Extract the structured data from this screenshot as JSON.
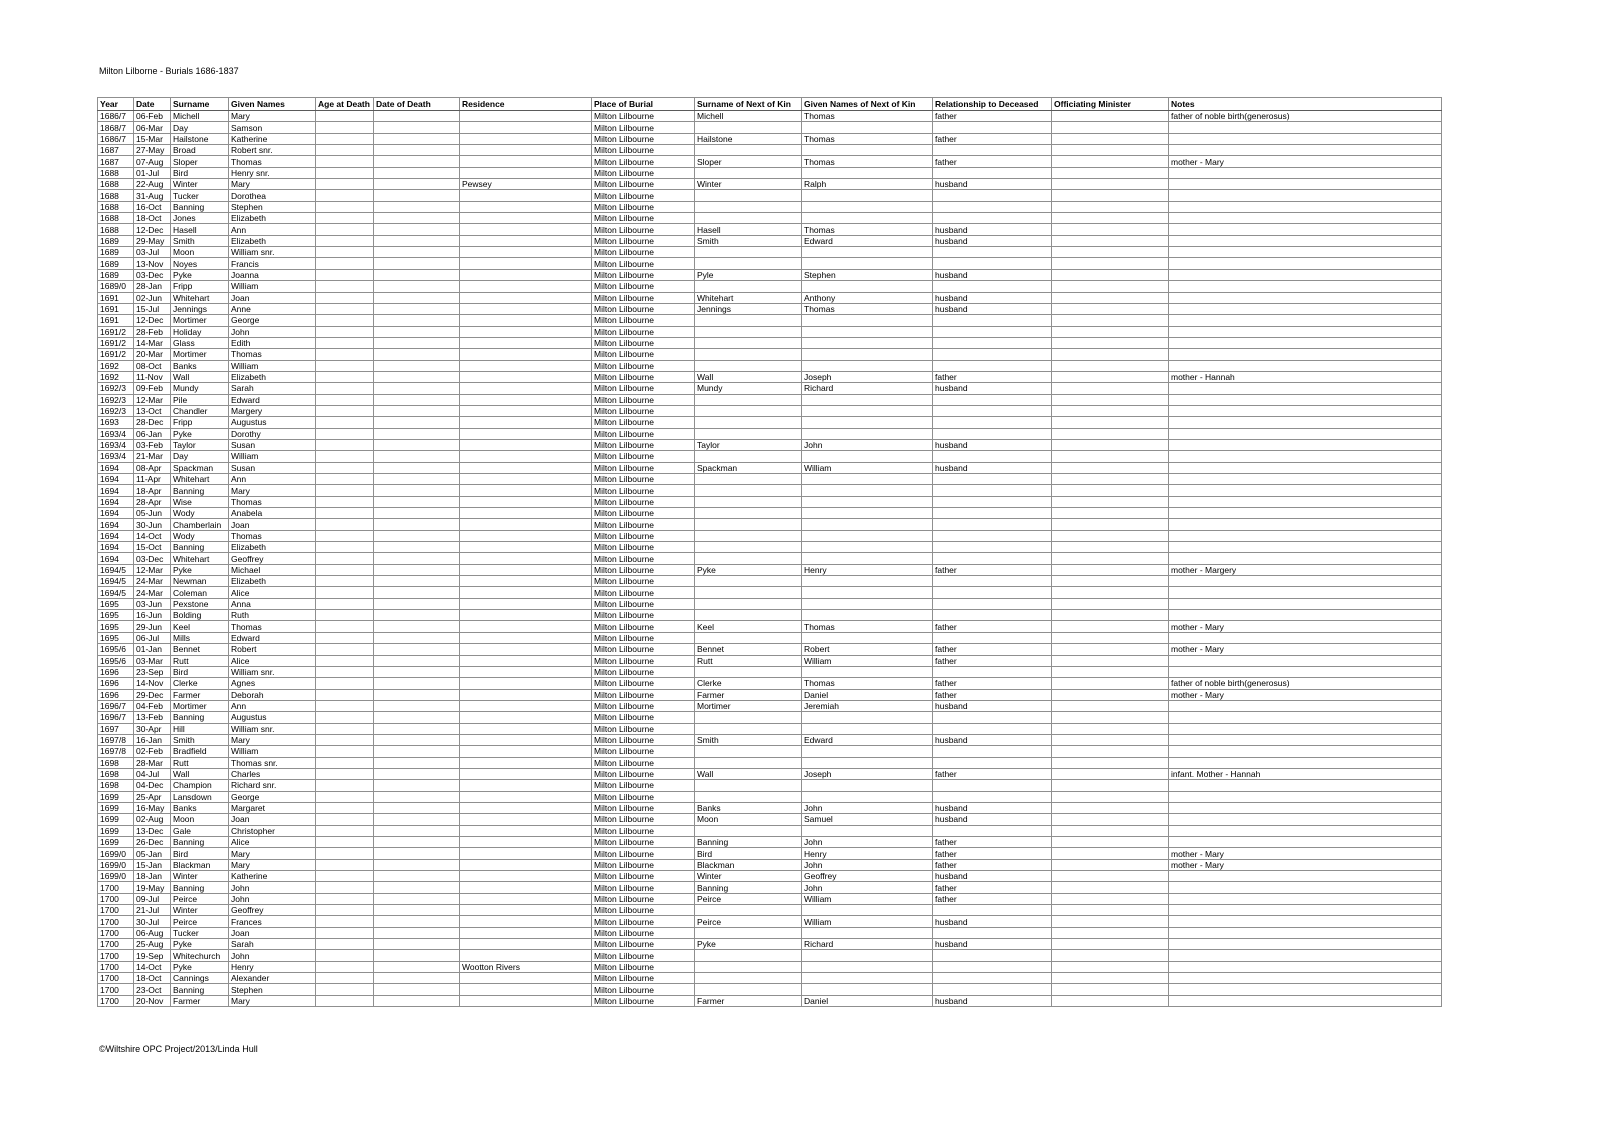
{
  "page": {
    "title": "Milton Lilborne - Burials 1686-1837",
    "footer": "©Wiltshire OPC Project/2013/Linda Hull"
  },
  "table": {
    "columns": [
      "Year",
      "Date",
      "Surname",
      "Given Names",
      "Age at Death",
      "Date of Death",
      "Residence",
      "Place of Burial",
      "Surname of Next of Kin",
      "Given Names of Next of Kin",
      "Relationship to Deceased",
      "Officiating Minister",
      "Notes"
    ],
    "rows": [
      [
        "1686/7",
        "06-Feb",
        "Michell",
        "Mary",
        "",
        "",
        "",
        "Milton Lilbourne",
        "Michell",
        "Thomas",
        "father",
        "",
        "father of noble birth(generosus)"
      ],
      [
        "1868/7",
        "06-Mar",
        "Day",
        "Samson",
        "",
        "",
        "",
        "Milton Lilbourne",
        "",
        "",
        "",
        "",
        ""
      ],
      [
        "1686/7",
        "15-Mar",
        "Hailstone",
        "Katherine",
        "",
        "",
        "",
        "Milton Lilbourne",
        "Hailstone",
        "Thomas",
        "father",
        "",
        ""
      ],
      [
        "1687",
        "27-May",
        "Broad",
        "Robert snr.",
        "",
        "",
        "",
        "Milton Lilbourne",
        "",
        "",
        "",
        "",
        ""
      ],
      [
        "1687",
        "07-Aug",
        "Sloper",
        "Thomas",
        "",
        "",
        "",
        "Milton Lilbourne",
        "Sloper",
        "Thomas",
        "father",
        "",
        "mother - Mary"
      ],
      [
        "1688",
        "01-Jul",
        "Bird",
        "Henry snr.",
        "",
        "",
        "",
        "Milton Lilbourne",
        "",
        "",
        "",
        "",
        ""
      ],
      [
        "1688",
        "22-Aug",
        "Winter",
        "Mary",
        "",
        "",
        "Pewsey",
        "Milton Lilbourne",
        "Winter",
        "Ralph",
        "husband",
        "",
        ""
      ],
      [
        "1688",
        "31-Aug",
        "Tucker",
        "Dorothea",
        "",
        "",
        "",
        "Milton Lilbourne",
        "",
        "",
        "",
        "",
        ""
      ],
      [
        "1688",
        "16-Oct",
        "Banning",
        "Stephen",
        "",
        "",
        "",
        "Milton Lilbourne",
        "",
        "",
        "",
        "",
        ""
      ],
      [
        "1688",
        "18-Oct",
        "Jones",
        "Elizabeth",
        "",
        "",
        "",
        "Milton Lilbourne",
        "",
        "",
        "",
        "",
        ""
      ],
      [
        "1688",
        "12-Dec",
        "Hasell",
        "Ann",
        "",
        "",
        "",
        "Milton Lilbourne",
        "Hasell",
        "Thomas",
        "husband",
        "",
        ""
      ],
      [
        "1689",
        "29-May",
        "Smith",
        "Elizabeth",
        "",
        "",
        "",
        "Milton Lilbourne",
        "Smith",
        "Edward",
        "husband",
        "",
        ""
      ],
      [
        "1689",
        "03-Jul",
        "Moon",
        "William snr.",
        "",
        "",
        "",
        "Milton Lilbourne",
        "",
        "",
        "",
        "",
        ""
      ],
      [
        "1689",
        "13-Nov",
        "Noyes",
        "Francis",
        "",
        "",
        "",
        "Milton Lilbourne",
        "",
        "",
        "",
        "",
        ""
      ],
      [
        "1689",
        "03-Dec",
        "Pyke",
        "Joanna",
        "",
        "",
        "",
        "Milton Lilbourne",
        "Pyle",
        "Stephen",
        "husband",
        "",
        ""
      ],
      [
        "1689/0",
        "28-Jan",
        "Fripp",
        "William",
        "",
        "",
        "",
        "Milton Lilbourne",
        "",
        "",
        "",
        "",
        ""
      ],
      [
        "1691",
        "02-Jun",
        "Whitehart",
        "Joan",
        "",
        "",
        "",
        "Milton Lilbourne",
        "Whitehart",
        "Anthony",
        "husband",
        "",
        ""
      ],
      [
        "1691",
        "15-Jul",
        "Jennings",
        "Anne",
        "",
        "",
        "",
        "Milton Lilbourne",
        "Jennings",
        "Thomas",
        "husband",
        "",
        ""
      ],
      [
        "1691",
        "12-Dec",
        "Mortimer",
        "George",
        "",
        "",
        "",
        "Milton Lilbourne",
        "",
        "",
        "",
        "",
        ""
      ],
      [
        "1691/2",
        "28-Feb",
        "Holiday",
        "John",
        "",
        "",
        "",
        "Milton Lilbourne",
        "",
        "",
        "",
        "",
        ""
      ],
      [
        "1691/2",
        "14-Mar",
        "Glass",
        "Edith",
        "",
        "",
        "",
        "Milton Lilbourne",
        "",
        "",
        "",
        "",
        ""
      ],
      [
        "1691/2",
        "20-Mar",
        "Mortimer",
        "Thomas",
        "",
        "",
        "",
        "Milton Lilbourne",
        "",
        "",
        "",
        "",
        ""
      ],
      [
        "1692",
        "08-Oct",
        "Banks",
        "William",
        "",
        "",
        "",
        "Milton Lilbourne",
        "",
        "",
        "",
        "",
        ""
      ],
      [
        "1692",
        "11-Nov",
        "Wall",
        "Elizabeth",
        "",
        "",
        "",
        "Milton Lilbourne",
        "Wall",
        "Joseph",
        "father",
        "",
        "mother - Hannah"
      ],
      [
        "1692/3",
        "09-Feb",
        "Mundy",
        "Sarah",
        "",
        "",
        "",
        "Milton Lilbourne",
        "Mundy",
        "Richard",
        "husband",
        "",
        ""
      ],
      [
        "1692/3",
        "12-Mar",
        "Pile",
        "Edward",
        "",
        "",
        "",
        "Milton Lilbourne",
        "",
        "",
        "",
        "",
        ""
      ],
      [
        "1692/3",
        "13-Oct",
        "Chandler",
        "Margery",
        "",
        "",
        "",
        "Milton Lilbourne",
        "",
        "",
        "",
        "",
        ""
      ],
      [
        "1693",
        "28-Dec",
        "Fripp",
        "Augustus",
        "",
        "",
        "",
        "Milton Lilbourne",
        "",
        "",
        "",
        "",
        ""
      ],
      [
        "1693/4",
        "06-Jan",
        "Pyke",
        "Dorothy",
        "",
        "",
        "",
        "Milton Lilbourne",
        "",
        "",
        "",
        "",
        ""
      ],
      [
        "1693/4",
        "03-Feb",
        "Taylor",
        "Susan",
        "",
        "",
        "",
        "Milton Lilbourne",
        "Taylor",
        "John",
        "husband",
        "",
        ""
      ],
      [
        "1693/4",
        "21-Mar",
        "Day",
        "William",
        "",
        "",
        "",
        "Milton Lilbourne",
        "",
        "",
        "",
        "",
        ""
      ],
      [
        "1694",
        "08-Apr",
        "Spackman",
        "Susan",
        "",
        "",
        "",
        "Milton Lilbourne",
        "Spackman",
        "William",
        "husband",
        "",
        ""
      ],
      [
        "1694",
        "11-Apr",
        "Whitehart",
        "Ann",
        "",
        "",
        "",
        "Milton Lilbourne",
        "",
        "",
        "",
        "",
        ""
      ],
      [
        "1694",
        "18-Apr",
        "Banning",
        "Mary",
        "",
        "",
        "",
        "Milton Lilbourne",
        "",
        "",
        "",
        "",
        ""
      ],
      [
        "1694",
        "28-Apr",
        "Wise",
        "Thomas",
        "",
        "",
        "",
        "Milton Lilbourne",
        "",
        "",
        "",
        "",
        ""
      ],
      [
        "1694",
        "05-Jun",
        "Wody",
        "Anabela",
        "",
        "",
        "",
        "Milton Lilbourne",
        "",
        "",
        "",
        "",
        ""
      ],
      [
        "1694",
        "30-Jun",
        "Chamberlain",
        "Joan",
        "",
        "",
        "",
        "Milton Lilbourne",
        "",
        "",
        "",
        "",
        ""
      ],
      [
        "1694",
        "14-Oct",
        "Wody",
        "Thomas",
        "",
        "",
        "",
        "Milton Lilbourne",
        "",
        "",
        "",
        "",
        ""
      ],
      [
        "1694",
        "15-Oct",
        "Banning",
        "Elizabeth",
        "",
        "",
        "",
        "Milton Lilbourne",
        "",
        "",
        "",
        "",
        ""
      ],
      [
        "1694",
        "03-Dec",
        "Whitehart",
        "Geoffrey",
        "",
        "",
        "",
        "Milton Lilbourne",
        "",
        "",
        "",
        "",
        ""
      ],
      [
        "1694/5",
        "12-Mar",
        "Pyke",
        "Michael",
        "",
        "",
        "",
        "Milton Lilbourne",
        "Pyke",
        "Henry",
        "father",
        "",
        "mother - Margery"
      ],
      [
        "1694/5",
        "24-Mar",
        "Newman",
        "Elizabeth",
        "",
        "",
        "",
        "Milton Lilbourne",
        "",
        "",
        "",
        "",
        ""
      ],
      [
        "1694/5",
        "24-Mar",
        "Coleman",
        "Alice",
        "",
        "",
        "",
        "Milton Lilbourne",
        "",
        "",
        "",
        "",
        ""
      ],
      [
        "1695",
        "03-Jun",
        "Pexstone",
        "Anna",
        "",
        "",
        "",
        "Milton Lilbourne",
        "",
        "",
        "",
        "",
        ""
      ],
      [
        "1695",
        "16-Jun",
        "Bolding",
        "Ruth",
        "",
        "",
        "",
        "Milton Lilbourne",
        "",
        "",
        "",
        "",
        ""
      ],
      [
        "1695",
        "29-Jun",
        "Keel",
        "Thomas",
        "",
        "",
        "",
        "Milton Lilbourne",
        "Keel",
        "Thomas",
        "father",
        "",
        "mother - Mary"
      ],
      [
        "1695",
        "06-Jul",
        "Mills",
        "Edward",
        "",
        "",
        "",
        "Milton Lilbourne",
        "",
        "",
        "",
        "",
        ""
      ],
      [
        "1695/6",
        "01-Jan",
        "Bennet",
        "Robert",
        "",
        "",
        "",
        "Milton Lilbourne",
        "Bennet",
        "Robert",
        "father",
        "",
        "mother - Mary"
      ],
      [
        "1695/6",
        "03-Mar",
        "Rutt",
        "Alice",
        "",
        "",
        "",
        "Milton Lilbourne",
        "Rutt",
        "William",
        "father",
        "",
        ""
      ],
      [
        "1696",
        "23-Sep",
        "Bird",
        "William snr.",
        "",
        "",
        "",
        "Milton Lilbourne",
        "",
        "",
        "",
        "",
        ""
      ],
      [
        "1696",
        "14-Nov",
        "Clerke",
        "Agnes",
        "",
        "",
        "",
        "Milton Lilbourne",
        "Clerke",
        "Thomas",
        "father",
        "",
        "father of noble birth(generosus)"
      ],
      [
        "1696",
        "29-Dec",
        "Farmer",
        "Deborah",
        "",
        "",
        "",
        "Milton Lilbourne",
        "Farmer",
        "Daniel",
        "father",
        "",
        "mother - Mary"
      ],
      [
        "1696/7",
        "04-Feb",
        "Mortimer",
        "Ann",
        "",
        "",
        "",
        "Milton Lilbourne",
        "Mortimer",
        "Jeremiah",
        "husband",
        "",
        ""
      ],
      [
        "1696/7",
        "13-Feb",
        "Banning",
        "Augustus",
        "",
        "",
        "",
        "Milton Lilbourne",
        "",
        "",
        "",
        "",
        ""
      ],
      [
        "1697",
        "30-Apr",
        "Hill",
        "William snr.",
        "",
        "",
        "",
        "Milton Lilbourne",
        "",
        "",
        "",
        "",
        ""
      ],
      [
        "1697/8",
        "16-Jan",
        "Smith",
        "Mary",
        "",
        "",
        "",
        "Milton Lilbourne",
        "Smith",
        "Edward",
        "husband",
        "",
        ""
      ],
      [
        "1697/8",
        "02-Feb",
        "Bradfield",
        "William",
        "",
        "",
        "",
        "Milton Lilbourne",
        "",
        "",
        "",
        "",
        ""
      ],
      [
        "1698",
        "28-Mar",
        "Rutt",
        "Thomas snr.",
        "",
        "",
        "",
        "Milton Lilbourne",
        "",
        "",
        "",
        "",
        ""
      ],
      [
        "1698",
        "04-Jul",
        "Wall",
        "Charles",
        "",
        "",
        "",
        "Milton Lilbourne",
        "Wall",
        "Joseph",
        "father",
        "",
        "infant.  Mother  -  Hannah"
      ],
      [
        "1698",
        "04-Dec",
        "Champion",
        "Richard snr.",
        "",
        "",
        "",
        "Milton Lilbourne",
        "",
        "",
        "",
        "",
        ""
      ],
      [
        "1699",
        "25-Apr",
        "Lansdown",
        "George",
        "",
        "",
        "",
        "Milton Lilbourne",
        "",
        "",
        "",
        "",
        ""
      ],
      [
        "1699",
        "16-May",
        "Banks",
        "Margaret",
        "",
        "",
        "",
        "Milton Lilbourne",
        "Banks",
        "John",
        "husband",
        "",
        ""
      ],
      [
        "1699",
        "02-Aug",
        "Moon",
        "Joan",
        "",
        "",
        "",
        "Milton Lilbourne",
        "Moon",
        "Samuel",
        "husband",
        "",
        ""
      ],
      [
        "1699",
        "13-Dec",
        "Gale",
        "Christopher",
        "",
        "",
        "",
        "Milton Lilbourne",
        "",
        "",
        "",
        "",
        ""
      ],
      [
        "1699",
        "26-Dec",
        "Banning",
        "Alice",
        "",
        "",
        "",
        "Milton Lilbourne",
        "Banning",
        "John",
        "father",
        "",
        ""
      ],
      [
        "1699/0",
        "05-Jan",
        "Bird",
        "Mary",
        "",
        "",
        "",
        "Milton Lilbourne",
        "Bird",
        "Henry",
        "father",
        "",
        "mother - Mary"
      ],
      [
        "1699/0",
        "15-Jan",
        "Blackman",
        "Mary",
        "",
        "",
        "",
        "Milton Lilbourne",
        "Blackman",
        "John",
        "father",
        "",
        "mother - Mary"
      ],
      [
        "1699/0",
        "18-Jan",
        "Winter",
        "Katherine",
        "",
        "",
        "",
        "Milton Lilbourne",
        "Winter",
        "Geoffrey",
        "husband",
        "",
        ""
      ],
      [
        "1700",
        "19-May",
        "Banning",
        "John",
        "",
        "",
        "",
        "Milton Lilbourne",
        "Banning",
        "John",
        "father",
        "",
        ""
      ],
      [
        "1700",
        "09-Jul",
        "Peirce",
        "John",
        "",
        "",
        "",
        "Milton Lilbourne",
        "Peirce",
        "William",
        "father",
        "",
        ""
      ],
      [
        "1700",
        "21-Jul",
        "Winter",
        "Geoffrey",
        "",
        "",
        "",
        "Milton Lilbourne",
        "",
        "",
        "",
        "",
        ""
      ],
      [
        "1700",
        "30-Jul",
        "Peirce",
        "Frances",
        "",
        "",
        "",
        "Milton Lilbourne",
        "Peirce",
        "William",
        "husband",
        "",
        ""
      ],
      [
        "1700",
        "06-Aug",
        "Tucker",
        "Joan",
        "",
        "",
        "",
        "Milton Lilbourne",
        "",
        "",
        "",
        "",
        ""
      ],
      [
        "1700",
        "25-Aug",
        "Pyke",
        "Sarah",
        "",
        "",
        "",
        "Milton Lilbourne",
        "Pyke",
        "Richard",
        "husband",
        "",
        ""
      ],
      [
        "1700",
        "19-Sep",
        "Whitechurch",
        "John",
        "",
        "",
        "",
        "Milton Lilbourne",
        "",
        "",
        "",
        "",
        ""
      ],
      [
        "1700",
        "14-Oct",
        "Pyke",
        "Henry",
        "",
        "",
        "Wootton Rivers",
        "Milton Lilbourne",
        "",
        "",
        "",
        "",
        ""
      ],
      [
        "1700",
        "18-Oct",
        "Cannings",
        "Alexander",
        "",
        "",
        "",
        "Milton Lilbourne",
        "",
        "",
        "",
        "",
        ""
      ],
      [
        "1700",
        "23-Oct",
        "Banning",
        "Stephen",
        "",
        "",
        "",
        "Milton Lilbourne",
        "",
        "",
        "",
        "",
        ""
      ],
      [
        "1700",
        "20-Nov",
        "Farmer",
        "Mary",
        "",
        "",
        "",
        "Milton Lilbourne",
        "Farmer",
        "Daniel",
        "husband",
        "",
        ""
      ]
    ]
  }
}
